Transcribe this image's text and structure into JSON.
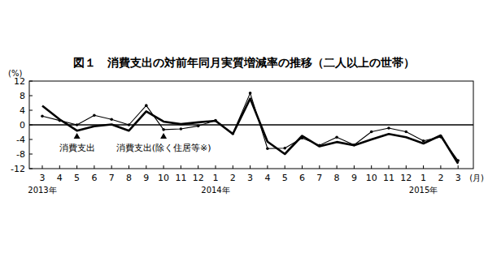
{
  "chart_data": {
    "type": "line",
    "title": "図１　消費支出の対前年同月実質増減率の推移（二人以上の世帯）",
    "y_label": "(%)",
    "x_label": "(月)",
    "categories": [
      "3",
      "4",
      "5",
      "6",
      "7",
      "8",
      "9",
      "10",
      "11",
      "12",
      "1",
      "2",
      "3",
      "4",
      "5",
      "6",
      "7",
      "8",
      "9",
      "10",
      "11",
      "12",
      "1",
      "2",
      "3"
    ],
    "year_labels": [
      {
        "label": "2013年",
        "at": 0
      },
      {
        "label": "2014年",
        "at": 10
      },
      {
        "label": "2015年",
        "at": 22
      }
    ],
    "ylim": [
      -12,
      12
    ],
    "yticks": [
      -12,
      -8,
      -4,
      0,
      4,
      8,
      12
    ],
    "grid": false,
    "series": [
      {
        "name": "消費支出",
        "color": "#000000",
        "line_style": "thick",
        "marker": "none",
        "label_at": 2,
        "values": [
          5.2,
          1.5,
          -1.6,
          -0.4,
          0.1,
          -1.6,
          3.7,
          0.9,
          0.2,
          0.7,
          1.1,
          -2.5,
          7.2,
          -4.6,
          -8.0,
          -3.0,
          -5.9,
          -4.7,
          -5.6,
          -4.0,
          -2.5,
          -3.4,
          -5.1,
          -2.9,
          -10.6
        ]
      },
      {
        "name": "消費支出(除く住居等※)",
        "color": "#000000",
        "line_style": "thin",
        "marker": "circle",
        "label_at": 7,
        "values": [
          2.4,
          1.2,
          0.0,
          2.6,
          1.5,
          0.0,
          5.3,
          -1.3,
          -1.1,
          -0.3,
          1.2,
          -2.4,
          8.7,
          -6.5,
          -6.4,
          -3.6,
          -5.6,
          -3.4,
          -5.5,
          -1.9,
          -0.9,
          -1.9,
          -4.4,
          -3.3,
          -9.8
        ]
      }
    ]
  }
}
